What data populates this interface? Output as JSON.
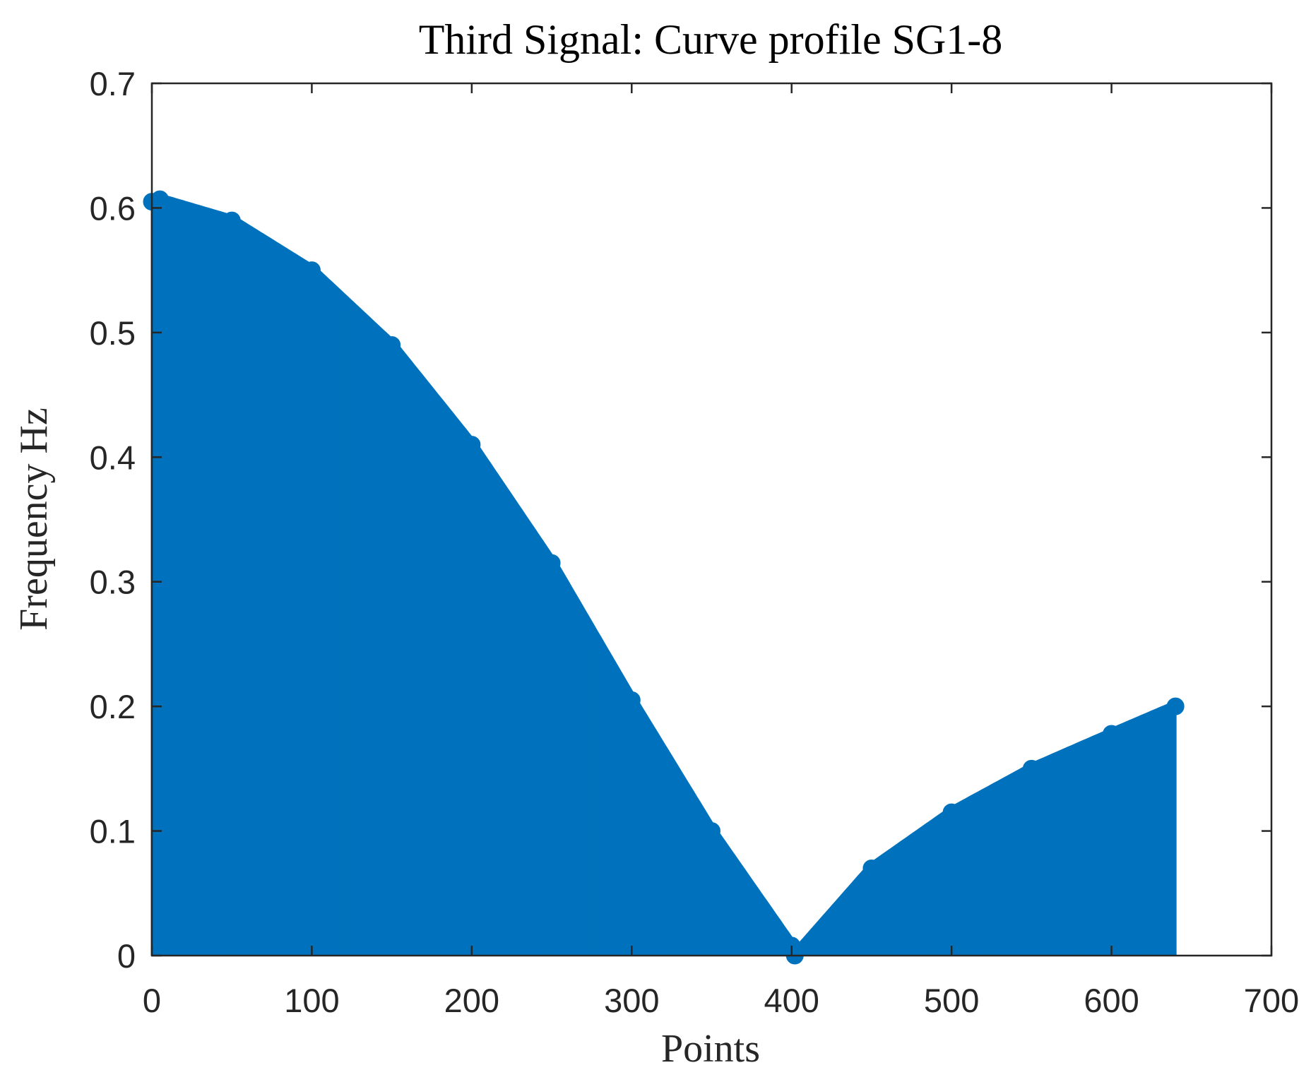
{
  "chart_data": {
    "type": "line",
    "title": "Third Signal: Curve profile SG1-8",
    "xlabel": "Points",
    "ylabel": "Frequency Hz",
    "xlim": [
      0,
      700
    ],
    "ylim": [
      0,
      0.7
    ],
    "xticks": [
      0,
      100,
      200,
      300,
      400,
      500,
      600,
      700
    ],
    "yticks": [
      0,
      0.1,
      0.2,
      0.3,
      0.4,
      0.5,
      0.6,
      0.7
    ],
    "xtick_labels": [
      "0",
      "100",
      "200",
      "300",
      "400",
      "500",
      "600",
      "700"
    ],
    "ytick_labels": [
      "0",
      "0.1",
      "0.2",
      "0.3",
      "0.4",
      "0.5",
      "0.6",
      "0.7"
    ],
    "grid": false,
    "legend": "none",
    "series": [
      {
        "style": "stem",
        "color": "#0072BD",
        "marker": "circle",
        "x": [
          0,
          5,
          50,
          100,
          150,
          200,
          250,
          300,
          350,
          400,
          402,
          450,
          500,
          550,
          600,
          640
        ],
        "y": [
          0.605,
          0.607,
          0.59,
          0.55,
          0.49,
          0.41,
          0.315,
          0.205,
          0.1,
          0.008,
          0.0,
          0.07,
          0.115,
          0.15,
          0.178,
          0.2
        ]
      }
    ]
  }
}
